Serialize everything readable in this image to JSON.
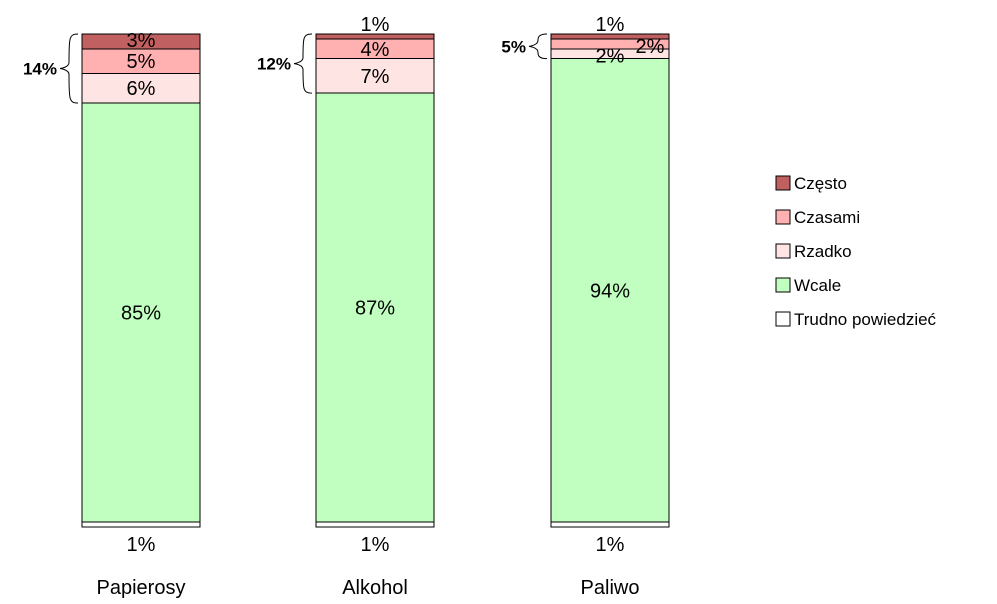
{
  "chart_data": {
    "type": "bar",
    "stacked": true,
    "categories": [
      "Papierosy",
      "Alkohol",
      "Paliwo"
    ],
    "series": [
      {
        "name": "Trudno powiedzieć",
        "color": "#ffffff",
        "values": [
          1,
          1,
          1
        ],
        "labels": [
          "1%",
          "1%",
          "1%"
        ]
      },
      {
        "name": "Wcale",
        "color": "#c0ffc0",
        "values": [
          85,
          87,
          94
        ],
        "labels": [
          "85%",
          "87%",
          "94%"
        ]
      },
      {
        "name": "Rzadko",
        "color": "#ffe4e4",
        "values": [
          6,
          7,
          2
        ],
        "labels": [
          "6%",
          "7%",
          "2%"
        ]
      },
      {
        "name": "Czasami",
        "color": "#ffb0b0",
        "values": [
          5,
          4,
          2
        ],
        "labels": [
          "5%",
          "4%",
          "2%"
        ]
      },
      {
        "name": "Często",
        "color": "#c06060",
        "values": [
          3,
          1,
          1
        ],
        "labels": [
          "3%",
          "1%",
          "1%"
        ]
      }
    ],
    "brace_totals": [
      "14%",
      "12%",
      "5%"
    ],
    "legend_order": [
      "Często",
      "Czasami",
      "Rzadko",
      "Wcale",
      "Trudno powiedzieć"
    ],
    "legend_position": "right",
    "ylim": [
      0,
      100
    ],
    "grid": false,
    "title": "",
    "xlabel": "",
    "ylabel": ""
  }
}
